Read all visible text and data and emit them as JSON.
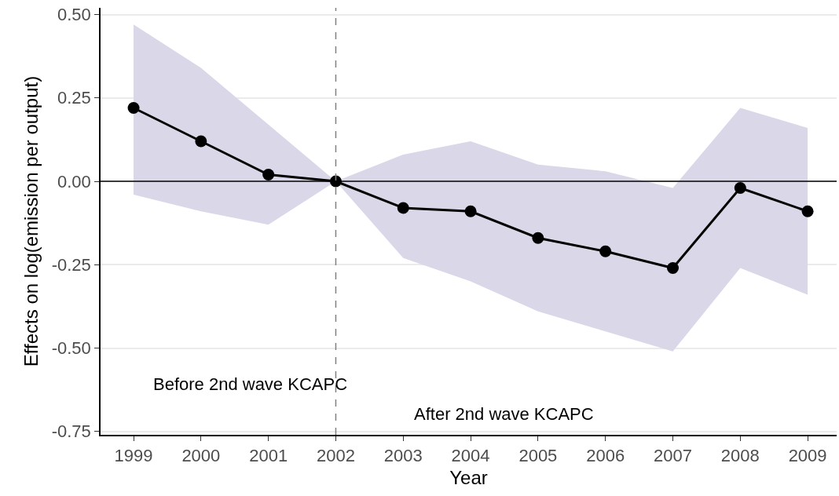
{
  "chart_data": {
    "type": "line",
    "xlabel": "Year",
    "ylabel": "Effects on log(emission per output)",
    "x": [
      1999,
      2000,
      2001,
      2002,
      2003,
      2004,
      2005,
      2006,
      2007,
      2008,
      2009
    ],
    "series": [
      {
        "color": "#000000",
        "values": [
          0.22,
          0.12,
          0.02,
          0,
          -0.08,
          -0.09,
          -0.17,
          -0.21,
          -0.26,
          -0.02,
          -0.09
        ],
        "lower": [
          -0.04,
          -0.09,
          -0.13,
          0,
          -0.23,
          -0.3,
          -0.39,
          -0.45,
          -0.51,
          -0.26,
          -0.34
        ],
        "upper": [
          0.47,
          0.34,
          0.17,
          0,
          0.08,
          0.12,
          0.05,
          0.03,
          -0.02,
          0.22,
          0.16
        ]
      }
    ],
    "xlim": [
      1998.51,
      2009.43
    ],
    "xticks": [
      1999,
      2000,
      2001,
      2002,
      2003,
      2004,
      2005,
      2006,
      2007,
      2008,
      2009
    ],
    "ylim": [
      -0.76,
      0.52
    ],
    "yticks": [
      {
        "value": 0.5,
        "label": "0.50"
      },
      {
        "value": 0.25,
        "label": "0.25"
      },
      {
        "value": 0,
        "label": "0.00"
      },
      {
        "value": -0.25,
        "label": "-0.25"
      },
      {
        "value": -0.5,
        "label": "-0.50"
      },
      {
        "value": -0.75,
        "label": "-0.75"
      }
    ],
    "ref_lines": [
      {
        "axis": "x",
        "value": 2002,
        "color": "#808080",
        "line_style": "dashed"
      },
      {
        "axis": "y",
        "value": 0,
        "color": "#000000",
        "line_style": "solid"
      }
    ],
    "annotations": [
      "Before 2nd wave KCAPC",
      "After 2nd wave KCAPC"
    ],
    "grid": "y",
    "marker": "circle",
    "line_style": "solid"
  }
}
